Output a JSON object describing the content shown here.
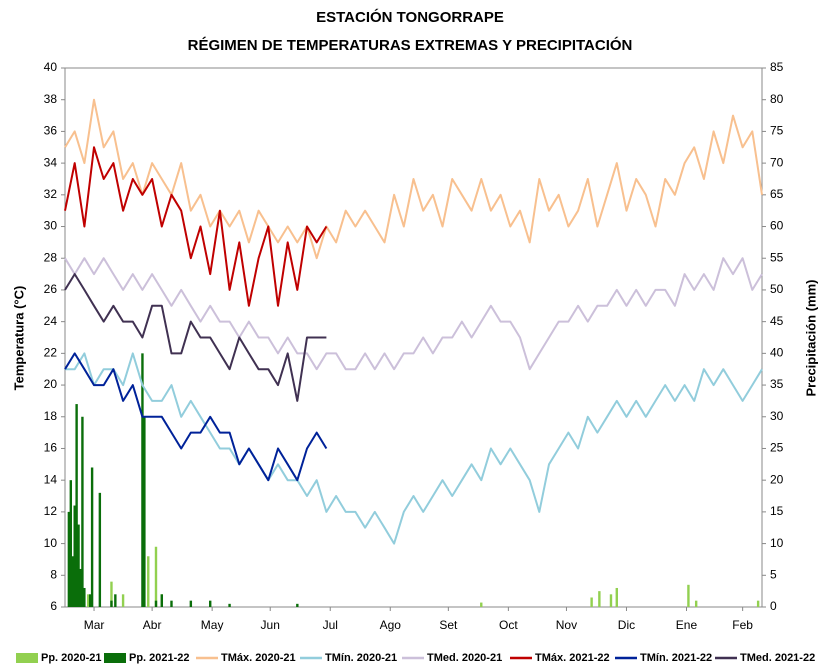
{
  "chart_data": {
    "type": "combo",
    "title": "ESTACIÓN TONGORRAPE",
    "subtitle": "RÉGIMEN DE TEMPERATURAS  EXTREMAS Y PRECIPITACIÓN",
    "y_label": "Temperatura (°C)",
    "y2_label": "Precipitación (mm)",
    "xlim": [
      0,
      360
    ],
    "xticks": [
      {
        "value": 15,
        "label": "Mar"
      },
      {
        "value": 45,
        "label": "Abr"
      },
      {
        "value": 76,
        "label": "May"
      },
      {
        "value": 106,
        "label": "Jun"
      },
      {
        "value": 137,
        "label": "Jul"
      },
      {
        "value": 168,
        "label": "Ago"
      },
      {
        "value": 198,
        "label": "Set"
      },
      {
        "value": 229,
        "label": "Oct"
      },
      {
        "value": 259,
        "label": "Nov"
      },
      {
        "value": 290,
        "label": "Dic"
      },
      {
        "value": 321,
        "label": "Ene"
      },
      {
        "value": 350,
        "label": "Feb"
      }
    ],
    "ylim": [
      6,
      40
    ],
    "yticks": [
      6,
      8,
      10,
      12,
      14,
      16,
      18,
      20,
      22,
      24,
      26,
      28,
      30,
      32,
      34,
      36,
      38,
      40
    ],
    "y2lim": [
      0,
      85
    ],
    "y2ticks": [
      0,
      5,
      10,
      15,
      20,
      25,
      30,
      35,
      40,
      45,
      50,
      55,
      60,
      65,
      70,
      75,
      80,
      85
    ],
    "grid": false,
    "series": [
      {
        "name": "Pp. 2020-21",
        "kind": "bar",
        "axis": "y2",
        "color": "#92d050",
        "x": [
          4,
          8,
          12,
          24,
          30,
          43,
          47,
          50,
          215,
          272,
          276,
          282,
          285,
          322,
          326,
          358
        ],
        "values": [
          2,
          3,
          2,
          4,
          2,
          8,
          9.5,
          2,
          0.7,
          1.5,
          2.5,
          2,
          3,
          3.5,
          1,
          1
        ]
      },
      {
        "name": "Pp. 2021-22",
        "kind": "bar",
        "axis": "y2",
        "color": "#0a6e0a",
        "x": [
          2,
          3,
          4,
          5,
          6,
          7,
          8,
          9,
          10,
          13,
          14,
          18,
          24,
          26,
          40,
          41,
          47,
          50,
          55,
          65,
          75,
          85,
          120
        ],
        "values": [
          15,
          20,
          8,
          16,
          32,
          13,
          6,
          30,
          3,
          2,
          22,
          18,
          1,
          2,
          40,
          30,
          1,
          2,
          1,
          1,
          1,
          0.5,
          0.5
        ]
      },
      {
        "name": "TMáx. 2020-21",
        "kind": "line",
        "color": "#f8c08f",
        "x": [
          0,
          5,
          10,
          15,
          20,
          25,
          30,
          35,
          40,
          45,
          50,
          55,
          60,
          65,
          70,
          75,
          80,
          85,
          90,
          95,
          100,
          105,
          110,
          115,
          120,
          125,
          130,
          135,
          140,
          145,
          150,
          155,
          160,
          165,
          170,
          175,
          180,
          185,
          190,
          195,
          200,
          205,
          210,
          215,
          220,
          225,
          230,
          235,
          240,
          245,
          250,
          255,
          260,
          265,
          270,
          275,
          280,
          285,
          290,
          295,
          300,
          305,
          310,
          315,
          320,
          325,
          330,
          335,
          340,
          345,
          350,
          355,
          360
        ],
        "values": [
          35,
          36,
          34,
          38,
          35,
          36,
          33,
          34,
          32,
          34,
          33,
          32,
          34,
          31,
          32,
          30,
          31,
          30,
          31,
          29,
          31,
          30,
          29,
          30,
          29,
          30,
          28,
          30,
          29,
          31,
          30,
          31,
          30,
          29,
          32,
          30,
          33,
          31,
          32,
          30,
          33,
          32,
          31,
          33,
          31,
          32,
          30,
          31,
          29,
          33,
          31,
          32,
          30,
          31,
          33,
          30,
          32,
          34,
          31,
          33,
          32,
          30,
          33,
          32,
          34,
          35,
          33,
          36,
          34,
          37,
          35,
          36,
          32
        ]
      },
      {
        "name": "TMín. 2020-21",
        "kind": "line",
        "color": "#92cddc",
        "x": [
          0,
          5,
          10,
          15,
          20,
          25,
          30,
          35,
          40,
          45,
          50,
          55,
          60,
          65,
          70,
          75,
          80,
          85,
          90,
          95,
          100,
          105,
          110,
          115,
          120,
          125,
          130,
          135,
          140,
          145,
          150,
          155,
          160,
          165,
          170,
          175,
          180,
          185,
          190,
          195,
          200,
          205,
          210,
          215,
          220,
          225,
          230,
          235,
          240,
          245,
          250,
          255,
          260,
          265,
          270,
          275,
          280,
          285,
          290,
          295,
          300,
          305,
          310,
          315,
          320,
          325,
          330,
          335,
          340,
          345,
          350,
          355,
          360
        ],
        "values": [
          21,
          21,
          22,
          20,
          21,
          21,
          20,
          22,
          20,
          19,
          19,
          20,
          18,
          19,
          18,
          17,
          16,
          16,
          15,
          16,
          15,
          14,
          15,
          14,
          14,
          13,
          14,
          12,
          13,
          12,
          12,
          11,
          12,
          11,
          10,
          12,
          13,
          12,
          13,
          14,
          13,
          14,
          15,
          14,
          16,
          15,
          16,
          15,
          14,
          12,
          15,
          16,
          17,
          16,
          18,
          17,
          18,
          19,
          18,
          19,
          18,
          19,
          20,
          19,
          20,
          19,
          21,
          20,
          21,
          20,
          19,
          20,
          21
        ]
      },
      {
        "name": "TMed. 2020-21",
        "kind": "line",
        "color": "#ccc0da",
        "x": [
          0,
          5,
          10,
          15,
          20,
          25,
          30,
          35,
          40,
          45,
          50,
          55,
          60,
          65,
          70,
          75,
          80,
          85,
          90,
          95,
          100,
          105,
          110,
          115,
          120,
          125,
          130,
          135,
          140,
          145,
          150,
          155,
          160,
          165,
          170,
          175,
          180,
          185,
          190,
          195,
          200,
          205,
          210,
          215,
          220,
          225,
          230,
          235,
          240,
          245,
          250,
          255,
          260,
          265,
          270,
          275,
          280,
          285,
          290,
          295,
          300,
          305,
          310,
          315,
          320,
          325,
          330,
          335,
          340,
          345,
          350,
          355,
          360
        ],
        "values": [
          28,
          27,
          28,
          27,
          28,
          27,
          26,
          27,
          26,
          27,
          26,
          25,
          26,
          25,
          24,
          25,
          24,
          24,
          23,
          24,
          23,
          23,
          22,
          23,
          22,
          22,
          21,
          22,
          22,
          21,
          21,
          22,
          21,
          22,
          21,
          22,
          22,
          23,
          22,
          23,
          23,
          24,
          23,
          24,
          25,
          24,
          24,
          23,
          21,
          22,
          23,
          24,
          24,
          25,
          24,
          25,
          25,
          26,
          25,
          26,
          25,
          26,
          26,
          25,
          27,
          26,
          27,
          26,
          28,
          27,
          28,
          26,
          27
        ]
      },
      {
        "name": "TMáx. 2021-22",
        "kind": "line",
        "color": "#c00000",
        "x": [
          0,
          5,
          10,
          15,
          20,
          25,
          30,
          35,
          40,
          45,
          50,
          55,
          60,
          65,
          70,
          75,
          80,
          85,
          90,
          95,
          100,
          105,
          110,
          115,
          120,
          125,
          130,
          135
        ],
        "values": [
          31,
          34,
          30,
          35,
          33,
          34,
          31,
          33,
          32,
          33,
          30,
          32,
          31,
          28,
          30,
          27,
          31,
          26,
          29,
          25,
          28,
          30,
          25,
          29,
          26,
          30,
          29,
          30
        ]
      },
      {
        "name": "TMín. 2021-22",
        "kind": "line",
        "color": "#002299",
        "x": [
          0,
          5,
          10,
          15,
          20,
          25,
          30,
          35,
          40,
          45,
          50,
          55,
          60,
          65,
          70,
          75,
          80,
          85,
          90,
          95,
          100,
          105,
          110,
          115,
          120,
          125,
          130,
          135
        ],
        "values": [
          21,
          22,
          21,
          20,
          20,
          21,
          19,
          20,
          18,
          18,
          18,
          17,
          16,
          17,
          17,
          18,
          17,
          17,
          15,
          16,
          15,
          14,
          16,
          15,
          14,
          16,
          17,
          16
        ]
      },
      {
        "name": "TMed. 2021-22",
        "kind": "line",
        "color": "#403152",
        "x": [
          0,
          5,
          10,
          15,
          20,
          25,
          30,
          35,
          40,
          45,
          50,
          55,
          60,
          65,
          70,
          75,
          80,
          85,
          90,
          95,
          100,
          105,
          110,
          115,
          120,
          125,
          130,
          135
        ],
        "values": [
          26,
          27,
          26,
          25,
          24,
          25,
          24,
          24,
          23,
          25,
          25,
          22,
          22,
          24,
          23,
          23,
          22,
          21,
          23,
          22,
          21,
          21,
          20,
          22,
          19,
          23,
          23,
          23
        ]
      }
    ]
  }
}
